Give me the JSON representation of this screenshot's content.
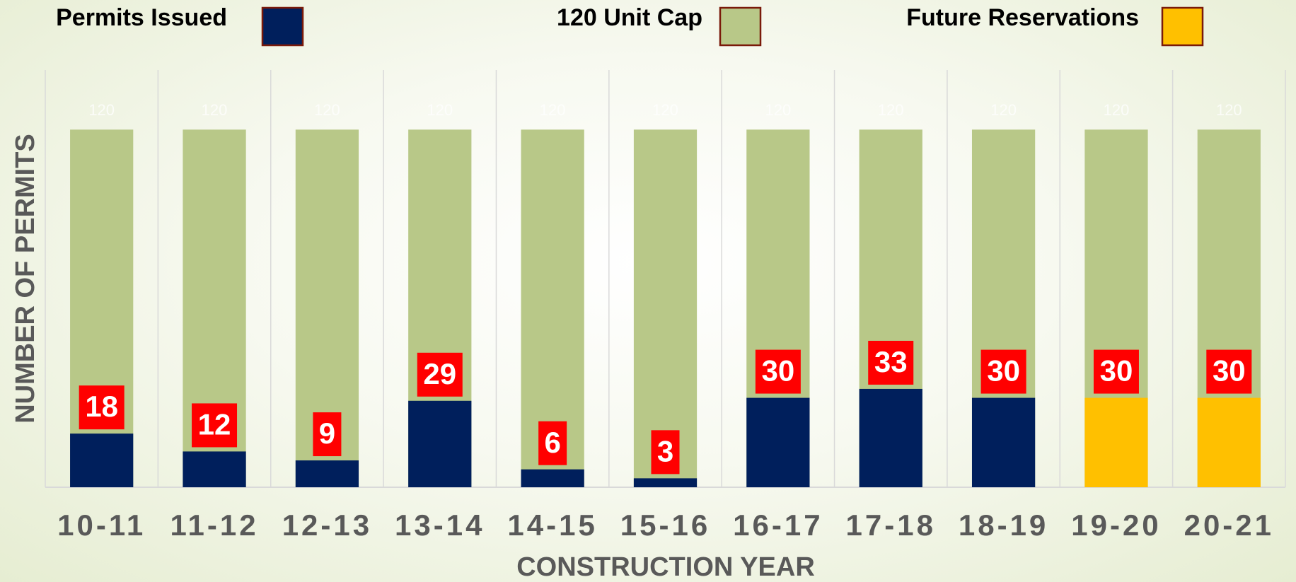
{
  "chart_data": {
    "type": "bar",
    "x_label": "CONSTRUCTION YEAR",
    "y_label": "NUMBER OF PERMITS",
    "categories": [
      "10-11",
      "11-12",
      "12-13",
      "13-14",
      "14-15",
      "15-16",
      "16-17",
      "17-18",
      "18-19",
      "19-20",
      "20-21"
    ],
    "series": [
      {
        "name": "Permits Issued",
        "color": "#001f5c",
        "values": [
          18,
          12,
          9,
          29,
          6,
          3,
          30,
          33,
          30,
          null,
          null
        ]
      },
      {
        "name": "120 Unit Cap",
        "color": "#b8c888",
        "values": [
          120,
          120,
          120,
          120,
          120,
          120,
          120,
          120,
          120,
          120,
          120
        ]
      },
      {
        "name": "Future Reservations",
        "color": "#ffc000",
        "values": [
          null,
          null,
          null,
          null,
          null,
          null,
          null,
          null,
          null,
          30,
          30
        ]
      }
    ],
    "ylim": [
      0,
      140
    ],
    "grid": true
  }
}
